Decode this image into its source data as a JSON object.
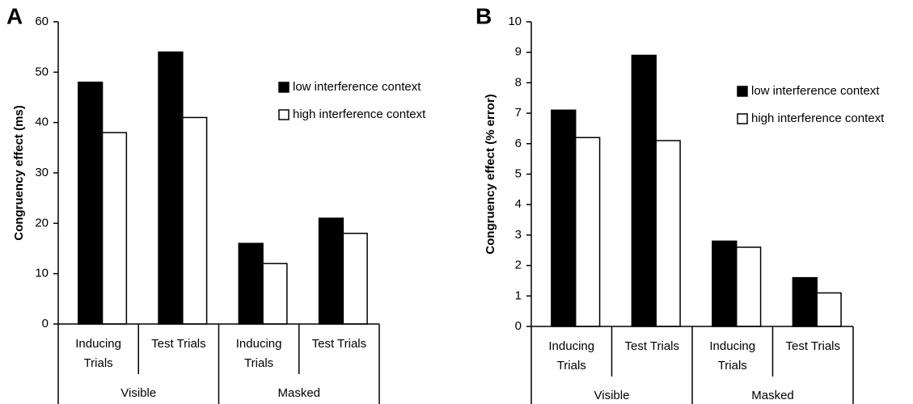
{
  "chart_data": [
    {
      "type": "bar",
      "panel": "A",
      "ylabel": "Congruency effect (ms)",
      "categories": [
        "Inducing Trials",
        "Test Trials",
        "Inducing Trials",
        "Test Trials"
      ],
      "groups": [
        "Visible",
        "Masked"
      ],
      "series": [
        {
          "name": "low interference context",
          "color": "#000000",
          "values": [
            48,
            54,
            16,
            21
          ]
        },
        {
          "name": "high interference context",
          "color": "#ffffff",
          "values": [
            38,
            41,
            12,
            18
          ]
        }
      ],
      "ylim": [
        0,
        60
      ],
      "yticks": [
        0,
        10,
        20,
        30,
        40,
        50,
        60
      ],
      "grid": false
    },
    {
      "type": "bar",
      "panel": "B",
      "ylabel": "Congruency effect (% error)",
      "categories": [
        "Inducing Trials",
        "Test Trials",
        "Inducing Trials",
        "Test Trials"
      ],
      "groups": [
        "Visible",
        "Masked"
      ],
      "series": [
        {
          "name": "low interference context",
          "color": "#000000",
          "values": [
            7.1,
            8.9,
            2.8,
            1.6
          ]
        },
        {
          "name": "high interference context",
          "color": "#ffffff",
          "values": [
            6.2,
            6.1,
            2.6,
            1.1
          ]
        }
      ],
      "ylim": [
        0,
        10
      ],
      "yticks": [
        0,
        1,
        2,
        3,
        4,
        5,
        6,
        7,
        8,
        9,
        10
      ],
      "grid": false
    }
  ]
}
